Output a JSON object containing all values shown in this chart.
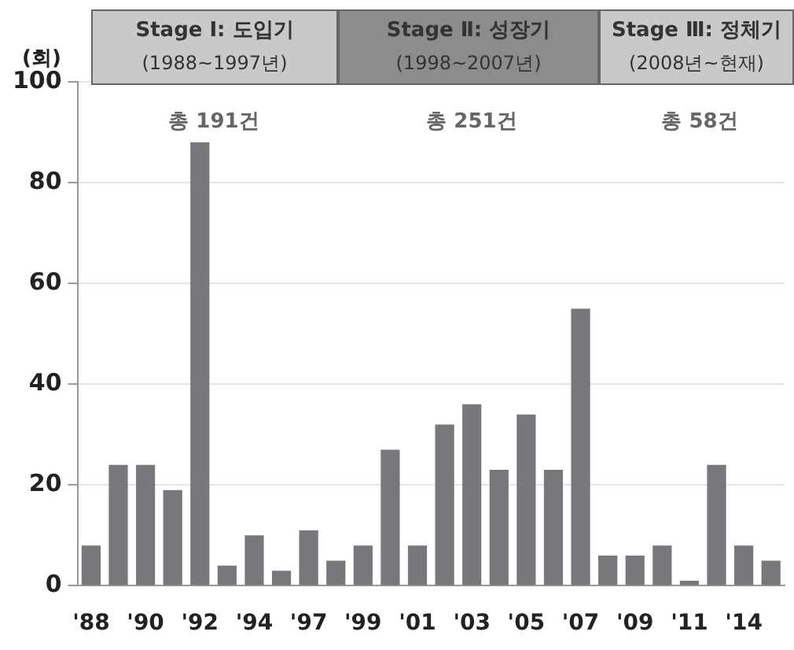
{
  "chart_data": {
    "type": "bar",
    "ylabel": "(회)",
    "categories": [
      "'88",
      null,
      "'90",
      null,
      "'92",
      null,
      "'94",
      null,
      "'97",
      null,
      "'99",
      null,
      "'01",
      null,
      "'03",
      null,
      "'05",
      null,
      "'07",
      null,
      "'09",
      null,
      "'11",
      null,
      "'14",
      null
    ],
    "values": [
      8,
      24,
      24,
      19,
      88,
      4,
      10,
      3,
      11,
      5,
      8,
      27,
      8,
      32,
      36,
      23,
      34,
      23,
      55,
      6,
      6,
      8,
      1,
      24,
      8,
      5
    ],
    "color": "#78787c",
    "ylim": [
      0,
      100
    ],
    "yticks": [
      0,
      20,
      40,
      60,
      80,
      100
    ],
    "grid": "y",
    "annotations": [
      "Stage Ⅰ: 도입기",
      "(1988~1997년)",
      "Stage Ⅱ: 성장기",
      "(1998~2007년)",
      "Stage Ⅲ: 정체기",
      "(2008년~현재)",
      "총 191건",
      "총 251건",
      "총 58건"
    ]
  }
}
